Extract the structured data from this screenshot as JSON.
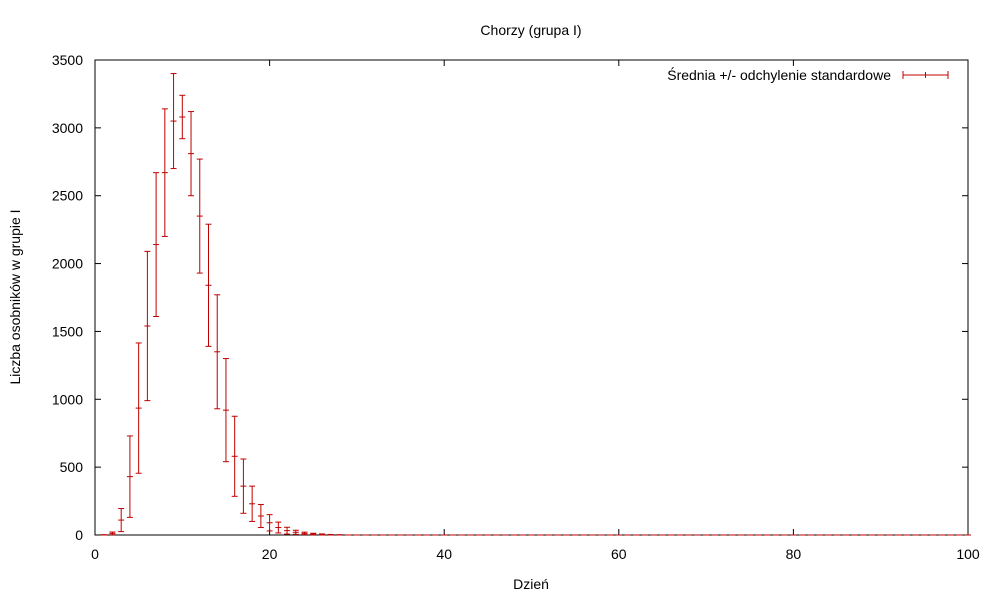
{
  "chart_data": {
    "type": "errorbar",
    "title": "Chorzy (grupa I)",
    "xlabel": "Dzień",
    "ylabel": "Liczba osobników w grupie I",
    "xlim": [
      0,
      100
    ],
    "ylim": [
      0,
      3500
    ],
    "xticks": [
      "0",
      "20",
      "40",
      "60",
      "80",
      "100"
    ],
    "yticks": [
      "0",
      "500",
      "1000",
      "1500",
      "2000",
      "2500",
      "3000",
      "3500"
    ],
    "grid": false,
    "legend_position": "top-right",
    "color": "#c00000",
    "series": [
      {
        "name": "Średnia +/- odchylenie standardowe",
        "points": [
          {
            "x": 1,
            "y": 1,
            "yerr": 1
          },
          {
            "x": 2,
            "y": 12,
            "yerr": 10
          },
          {
            "x": 3,
            "y": 110,
            "yerr": 85
          },
          {
            "x": 4,
            "y": 430,
            "yerr": 300
          },
          {
            "x": 5,
            "y": 935,
            "yerr": 480
          },
          {
            "x": 6,
            "y": 1540,
            "yerr": 550
          },
          {
            "x": 7,
            "y": 2140,
            "yerr": 530
          },
          {
            "x": 8,
            "y": 2670,
            "yerr": 470
          },
          {
            "x": 9,
            "y": 3050,
            "yerr": 350
          },
          {
            "x": 10,
            "y": 3080,
            "yerr": 160
          },
          {
            "x": 11,
            "y": 2810,
            "yerr": 310
          },
          {
            "x": 12,
            "y": 2350,
            "yerr": 420
          },
          {
            "x": 13,
            "y": 1840,
            "yerr": 450
          },
          {
            "x": 14,
            "y": 1350,
            "yerr": 420
          },
          {
            "x": 15,
            "y": 920,
            "yerr": 380
          },
          {
            "x": 16,
            "y": 580,
            "yerr": 295
          },
          {
            "x": 17,
            "y": 360,
            "yerr": 200
          },
          {
            "x": 18,
            "y": 230,
            "yerr": 130
          },
          {
            "x": 19,
            "y": 140,
            "yerr": 85
          },
          {
            "x": 20,
            "y": 90,
            "yerr": 60
          },
          {
            "x": 21,
            "y": 55,
            "yerr": 40
          },
          {
            "x": 22,
            "y": 32,
            "yerr": 25
          },
          {
            "x": 23,
            "y": 20,
            "yerr": 15
          },
          {
            "x": 24,
            "y": 12,
            "yerr": 9
          },
          {
            "x": 25,
            "y": 7,
            "yerr": 6
          },
          {
            "x": 26,
            "y": 4,
            "yerr": 4
          },
          {
            "x": 27,
            "y": 2,
            "yerr": 2
          },
          {
            "x": 28,
            "y": 1,
            "yerr": 1
          },
          {
            "x": 29,
            "y": 0,
            "yerr": 0
          },
          {
            "x": 30,
            "y": 0,
            "yerr": 0
          },
          {
            "x": 31,
            "y": 0,
            "yerr": 0
          },
          {
            "x": 32,
            "y": 0,
            "yerr": 0
          },
          {
            "x": 33,
            "y": 0,
            "yerr": 0
          },
          {
            "x": 34,
            "y": 0,
            "yerr": 0
          },
          {
            "x": 35,
            "y": 0,
            "yerr": 0
          },
          {
            "x": 36,
            "y": 0,
            "yerr": 0
          },
          {
            "x": 37,
            "y": 0,
            "yerr": 0
          },
          {
            "x": 38,
            "y": 0,
            "yerr": 0
          },
          {
            "x": 39,
            "y": 0,
            "yerr": 0
          },
          {
            "x": 40,
            "y": 0,
            "yerr": 0
          },
          {
            "x": 41,
            "y": 0,
            "yerr": 0
          },
          {
            "x": 42,
            "y": 0,
            "yerr": 0
          },
          {
            "x": 43,
            "y": 0,
            "yerr": 0
          },
          {
            "x": 44,
            "y": 0,
            "yerr": 0
          },
          {
            "x": 45,
            "y": 0,
            "yerr": 0
          },
          {
            "x": 46,
            "y": 0,
            "yerr": 0
          },
          {
            "x": 47,
            "y": 0,
            "yerr": 0
          },
          {
            "x": 48,
            "y": 0,
            "yerr": 0
          },
          {
            "x": 49,
            "y": 0,
            "yerr": 0
          },
          {
            "x": 50,
            "y": 0,
            "yerr": 0
          },
          {
            "x": 51,
            "y": 0,
            "yerr": 0
          },
          {
            "x": 52,
            "y": 0,
            "yerr": 0
          },
          {
            "x": 53,
            "y": 0,
            "yerr": 0
          },
          {
            "x": 54,
            "y": 0,
            "yerr": 0
          },
          {
            "x": 55,
            "y": 0,
            "yerr": 0
          },
          {
            "x": 56,
            "y": 0,
            "yerr": 0
          },
          {
            "x": 57,
            "y": 0,
            "yerr": 0
          },
          {
            "x": 58,
            "y": 0,
            "yerr": 0
          },
          {
            "x": 59,
            "y": 0,
            "yerr": 0
          },
          {
            "x": 60,
            "y": 0,
            "yerr": 0
          },
          {
            "x": 61,
            "y": 0,
            "yerr": 0
          },
          {
            "x": 62,
            "y": 0,
            "yerr": 0
          },
          {
            "x": 63,
            "y": 0,
            "yerr": 0
          },
          {
            "x": 64,
            "y": 0,
            "yerr": 0
          },
          {
            "x": 65,
            "y": 0,
            "yerr": 0
          },
          {
            "x": 66,
            "y": 0,
            "yerr": 0
          },
          {
            "x": 67,
            "y": 0,
            "yerr": 0
          },
          {
            "x": 68,
            "y": 0,
            "yerr": 0
          },
          {
            "x": 69,
            "y": 0,
            "yerr": 0
          },
          {
            "x": 70,
            "y": 0,
            "yerr": 0
          },
          {
            "x": 71,
            "y": 0,
            "yerr": 0
          },
          {
            "x": 72,
            "y": 0,
            "yerr": 0
          },
          {
            "x": 73,
            "y": 0,
            "yerr": 0
          },
          {
            "x": 74,
            "y": 0,
            "yerr": 0
          },
          {
            "x": 75,
            "y": 0,
            "yerr": 0
          },
          {
            "x": 76,
            "y": 0,
            "yerr": 0
          },
          {
            "x": 77,
            "y": 0,
            "yerr": 0
          },
          {
            "x": 78,
            "y": 0,
            "yerr": 0
          },
          {
            "x": 79,
            "y": 0,
            "yerr": 0
          },
          {
            "x": 80,
            "y": 0,
            "yerr": 0
          },
          {
            "x": 81,
            "y": 0,
            "yerr": 0
          },
          {
            "x": 82,
            "y": 0,
            "yerr": 0
          },
          {
            "x": 83,
            "y": 0,
            "yerr": 0
          },
          {
            "x": 84,
            "y": 0,
            "yerr": 0
          },
          {
            "x": 85,
            "y": 0,
            "yerr": 0
          },
          {
            "x": 86,
            "y": 0,
            "yerr": 0
          },
          {
            "x": 87,
            "y": 0,
            "yerr": 0
          },
          {
            "x": 88,
            "y": 0,
            "yerr": 0
          },
          {
            "x": 89,
            "y": 0,
            "yerr": 0
          },
          {
            "x": 90,
            "y": 0,
            "yerr": 0
          },
          {
            "x": 91,
            "y": 0,
            "yerr": 0
          },
          {
            "x": 92,
            "y": 0,
            "yerr": 0
          },
          {
            "x": 93,
            "y": 0,
            "yerr": 0
          },
          {
            "x": 94,
            "y": 0,
            "yerr": 0
          },
          {
            "x": 95,
            "y": 0,
            "yerr": 0
          },
          {
            "x": 96,
            "y": 0,
            "yerr": 0
          },
          {
            "x": 97,
            "y": 0,
            "yerr": 0
          },
          {
            "x": 98,
            "y": 0,
            "yerr": 0
          },
          {
            "x": 99,
            "y": 0,
            "yerr": 0
          },
          {
            "x": 100,
            "y": 0,
            "yerr": 0
          }
        ]
      }
    ]
  }
}
